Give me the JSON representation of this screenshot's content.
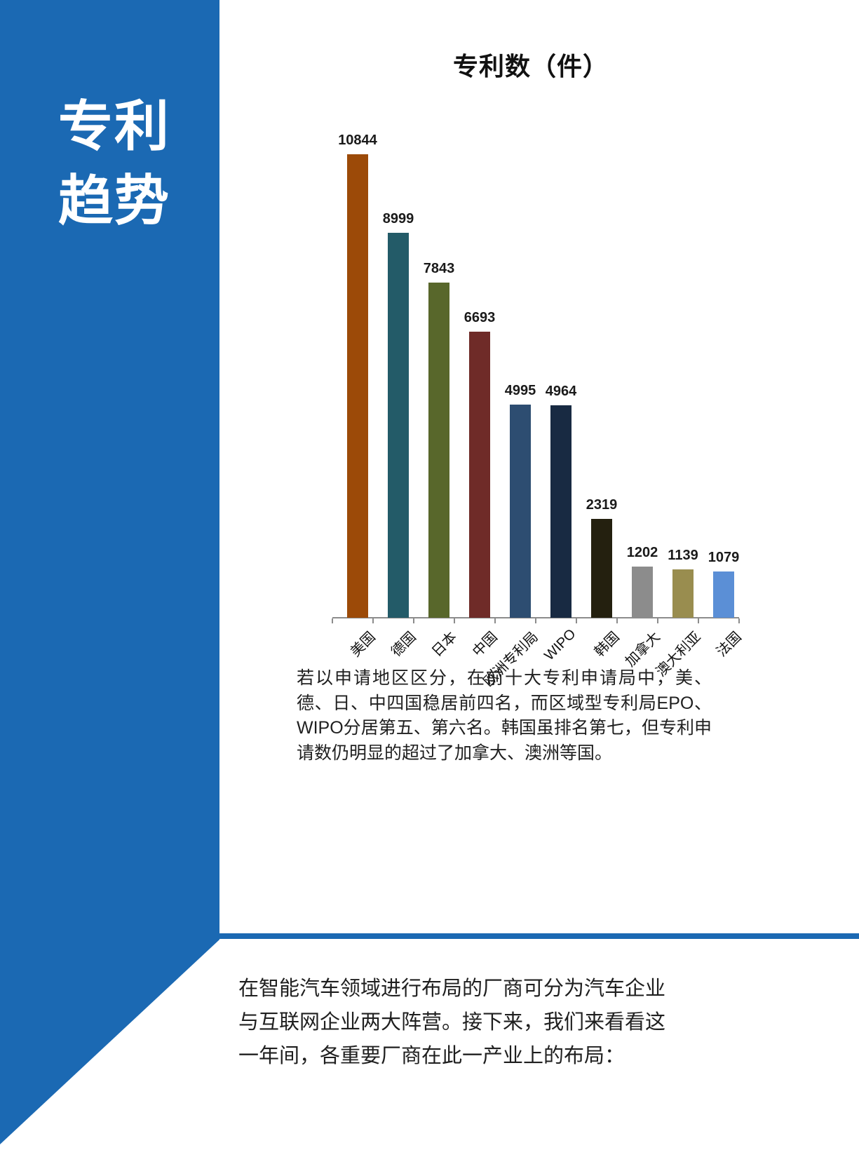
{
  "page": {
    "accent_blue": "#1b69b3",
    "background": "#ffffff"
  },
  "sidebar": {
    "title_line1": "专利",
    "title_line2": "趋势"
  },
  "chart_data": {
    "type": "bar",
    "title": "专利数（件）",
    "categories": [
      "美国",
      "德国",
      "日本",
      "中国",
      "欧洲专利局",
      "WIPO",
      "韩国",
      "加拿大",
      "澳大利亚",
      "法国"
    ],
    "values": [
      10844,
      8999,
      7843,
      6693,
      4995,
      4964,
      2319,
      1202,
      1139,
      1079
    ],
    "bar_colors": [
      "#9c4a08",
      "#235b68",
      "#58672b",
      "#6f2b28",
      "#2d4d71",
      "#182a42",
      "#24200f",
      "#8c8c8c",
      "#998d4f",
      "#5b8fd6"
    ],
    "value_labels_shown": true,
    "grid": false,
    "legend": null,
    "ylim": [
      0,
      11000
    ],
    "axis_color": "#8c8c8c",
    "xlabel": "",
    "ylabel": ""
  },
  "caption": "若以申请地区区分，在前十大专利申请局中，美、德、日、中四国稳居前四名，而区域型专利局EPO、WIPO分居第五、第六名。韩国虽排名第七，但专利申请数仍明显的超过了加拿大、澳洲等国。",
  "intro": "在智能汽车领域进行布局的厂商可分为汽车企业与互联网企业两大阵营。接下来，我们来看看这一年间，各重要厂商在此一产业上的布局："
}
